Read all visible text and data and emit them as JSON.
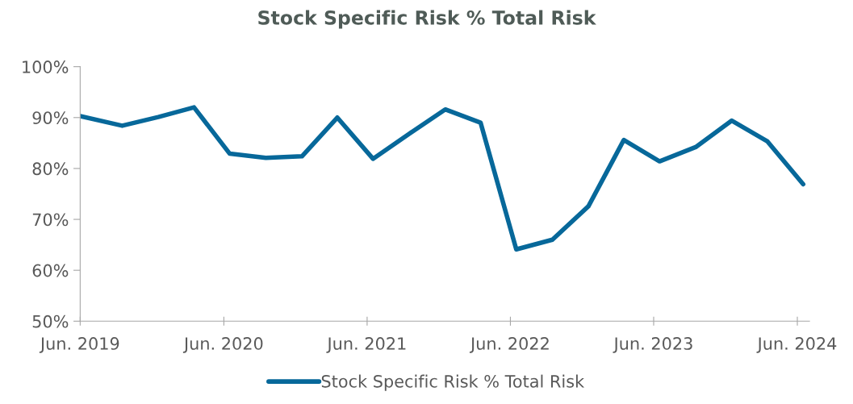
{
  "chart_data": {
    "type": "line",
    "title": "Stock Specific Risk % Total Risk",
    "x": [
      "2019-06-30",
      "2019-10-15",
      "2020-01-15",
      "2020-04-15",
      "2020-07-15",
      "2020-10-15",
      "2021-01-15",
      "2021-04-15",
      "2021-07-15",
      "2021-10-15",
      "2022-01-15",
      "2022-04-15",
      "2022-07-15",
      "2022-10-15",
      "2023-01-15",
      "2023-04-15",
      "2023-07-15",
      "2023-10-15",
      "2024-01-15",
      "2024-04-15",
      "2024-07-15"
    ],
    "series": [
      {
        "name": "Stock Specific Risk % Total Risk",
        "color": "#07689a",
        "values": [
          90.3,
          88.4,
          90.1,
          92.0,
          82.9,
          82.1,
          82.4,
          90.0,
          81.9,
          86.8,
          91.6,
          89.0,
          64.1,
          66.0,
          72.6,
          85.6,
          81.4,
          84.2,
          89.4,
          85.3,
          76.9
        ]
      }
    ],
    "xlim": [
      "2019-06-30",
      "2024-07-31"
    ],
    "xticks": [
      {
        "value": "2019-06-30",
        "label": "Jun. 2019"
      },
      {
        "value": "2020-06-30",
        "label": "Jun. 2020"
      },
      {
        "value": "2021-06-30",
        "label": "Jun. 2021"
      },
      {
        "value": "2022-06-30",
        "label": "Jun. 2022"
      },
      {
        "value": "2023-06-30",
        "label": "Jun. 2023"
      },
      {
        "value": "2024-06-30",
        "label": "Jun. 2024"
      }
    ],
    "ylim": [
      50,
      100
    ],
    "yticks": [
      {
        "value": 50,
        "label": "50%"
      },
      {
        "value": 60,
        "label": "60%"
      },
      {
        "value": 70,
        "label": "70%"
      },
      {
        "value": 80,
        "label": "80%"
      },
      {
        "value": 90,
        "label": "90%"
      },
      {
        "value": 100,
        "label": "100%"
      }
    ],
    "grid": false,
    "legend": "bottom",
    "marker": "none",
    "line_style": "solid"
  }
}
